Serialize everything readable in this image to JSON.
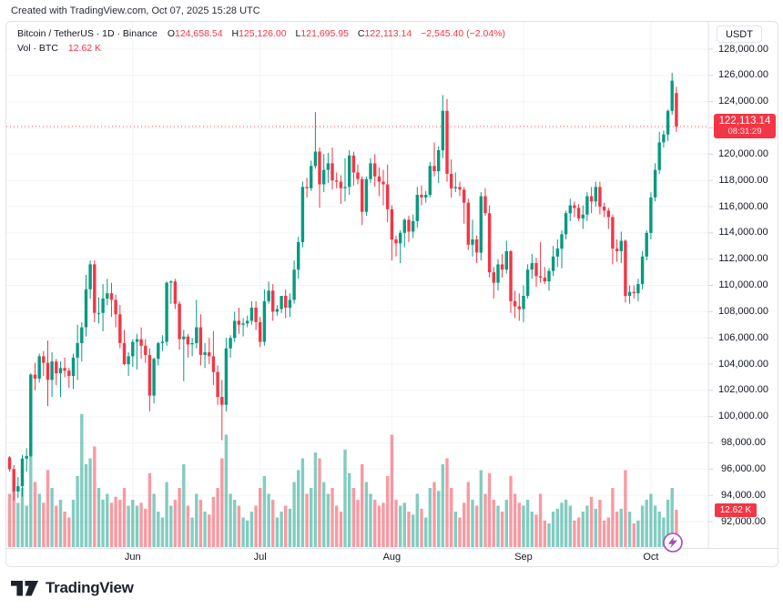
{
  "attribution": "Created with TradingView.com, Oct 07, 2025 15:28 UTC",
  "colors": {
    "up": "#089981",
    "down": "#F23645",
    "vol_up": "rgba(8,153,129,0.5)",
    "vol_down": "rgba(242,54,69,0.5)",
    "grid": "#F0F3FA",
    "axis_border": "#E0E3EB",
    "tick": "#D1D4DC",
    "badge": "#F23645",
    "accent_purple": "#AB47BC",
    "text": "#131722"
  },
  "legend": {
    "symbol": "Bitcoin / TetherUS · 1D · Binance",
    "o_label": "O",
    "o_value": "124,658.54",
    "h_label": "H",
    "h_value": "125,126.00",
    "l_label": "L",
    "l_value": "121,695.95",
    "c_label": "C",
    "c_value": "122,113.14",
    "change": "−2,545.40 (−2.04%)",
    "vol_label": "Vol · BTC",
    "vol_value": "12.62 K"
  },
  "y_axis": {
    "currency": "USDT",
    "ticks": [
      {
        "value": 128000,
        "label": "128,000.00"
      },
      {
        "value": 126000,
        "label": "126,000.00"
      },
      {
        "value": 124000,
        "label": "124,000.00"
      },
      {
        "value": 122000,
        "label": "",
        "hidden_by_badge": true
      },
      {
        "value": 120000,
        "label": "120,000.00"
      },
      {
        "value": 118000,
        "label": "118,000.00"
      },
      {
        "value": 116000,
        "label": "116,000.00"
      },
      {
        "value": 114000,
        "label": "114,000.00"
      },
      {
        "value": 112000,
        "label": "112,000.00"
      },
      {
        "value": 110000,
        "label": "110,000.00"
      },
      {
        "value": 108000,
        "label": "108,000.00"
      },
      {
        "value": 106000,
        "label": "106,000.00"
      },
      {
        "value": 104000,
        "label": "104,000.00"
      },
      {
        "value": 102000,
        "label": "102,000.00"
      },
      {
        "value": 100000,
        "label": "100,000.00"
      },
      {
        "value": 98000,
        "label": "98,000.00"
      },
      {
        "value": 96000,
        "label": "96,000.00"
      },
      {
        "value": 94000,
        "label": "94,000.00"
      },
      {
        "value": 92000,
        "label": "92,000.00"
      }
    ],
    "price_badge": {
      "price": "122,113.14",
      "countdown": "08:31:29"
    },
    "volume_badge": "12.62 K"
  },
  "x_axis": {
    "months": [
      {
        "label": "Jun",
        "index": 29
      },
      {
        "label": "Jul",
        "index": 59
      },
      {
        "label": "Aug",
        "index": 90
      },
      {
        "label": "Sep",
        "index": 121
      },
      {
        "label": "Oct",
        "index": 151
      }
    ]
  },
  "footer": {
    "logo_text": "TradingView"
  },
  "chart_data": {
    "type": "candlestick",
    "symbol": "Bitcoin / TetherUS",
    "interval": "1D",
    "exchange": "Binance",
    "title": "Bitcoin / TetherUS · 1D · Binance",
    "start_date": "2025-05-03",
    "end_date": "2025-10-07",
    "price_unit": "thousand USDT",
    "volume_unit": "thousand BTC",
    "ylim_usdt": [
      92000,
      128000
    ],
    "y_tick_step": 2000,
    "x_labels": [
      "Jun",
      "Jul",
      "Aug",
      "Sep",
      "Oct"
    ],
    "current_bar": {
      "open": 124658.54,
      "high": 125126.0,
      "low": 121695.95,
      "close": 122113.14,
      "change": -2545.4,
      "change_pct": -2.04,
      "volume_btc_k": 12.62
    },
    "candles_ohlcv": [
      [
        96.9,
        97.0,
        95.8,
        96.0,
        18
      ],
      [
        96.0,
        96.3,
        93.6,
        94.3,
        22
      ],
      [
        94.3,
        95.4,
        93.8,
        94.7,
        15
      ],
      [
        94.7,
        97.1,
        93.9,
        96.8,
        20
      ],
      [
        96.8,
        97.6,
        95.8,
        97.0,
        14
      ],
      [
        97.0,
        103.3,
        96.9,
        103.2,
        35
      ],
      [
        103.2,
        104.1,
        102.0,
        102.9,
        22
      ],
      [
        102.9,
        104.8,
        102.6,
        104.6,
        18
      ],
      [
        104.6,
        105.0,
        103.1,
        104.1,
        15
      ],
      [
        104.1,
        105.8,
        100.8,
        102.8,
        26
      ],
      [
        102.8,
        104.9,
        101.5,
        104.2,
        20
      ],
      [
        104.2,
        104.4,
        102.4,
        103.3,
        14
      ],
      [
        103.3,
        104.2,
        101.5,
        103.7,
        16
      ],
      [
        103.7,
        104.5,
        103.0,
        103.5,
        12
      ],
      [
        103.5,
        103.7,
        102.2,
        103.1,
        10
      ],
      [
        103.1,
        104.8,
        102.1,
        104.5,
        16
      ],
      [
        104.5,
        107.0,
        102.8,
        105.6,
        24
      ],
      [
        105.6,
        107.2,
        104.2,
        106.8,
        45
      ],
      [
        106.8,
        110.8,
        106.1,
        109.7,
        28
      ],
      [
        109.7,
        111.9,
        109.0,
        111.6,
        30
      ],
      [
        111.6,
        111.9,
        107.2,
        107.9,
        34
      ],
      [
        107.9,
        109.1,
        107.1,
        107.9,
        20
      ],
      [
        107.9,
        110.1,
        106.5,
        109.0,
        16
      ],
      [
        109.0,
        110.5,
        108.5,
        109.4,
        18
      ],
      [
        109.4,
        110.2,
        107.6,
        108.9,
        15
      ],
      [
        108.9,
        109.3,
        106.8,
        107.8,
        17
      ],
      [
        107.8,
        108.5,
        105.2,
        105.6,
        16
      ],
      [
        105.6,
        106.6,
        103.9,
        104.0,
        20
      ],
      [
        104.0,
        104.9,
        103.1,
        104.6,
        14
      ],
      [
        104.6,
        105.9,
        103.8,
        105.7,
        16
      ],
      [
        105.7,
        106.3,
        103.6,
        105.9,
        14
      ],
      [
        105.9,
        106.8,
        104.4,
        105.4,
        15
      ],
      [
        105.4,
        105.9,
        104.1,
        104.7,
        13
      ],
      [
        104.7,
        105.2,
        100.4,
        101.6,
        25
      ],
      [
        101.6,
        104.5,
        101.0,
        104.4,
        18
      ],
      [
        104.4,
        105.7,
        103.9,
        105.6,
        12
      ],
      [
        105.6,
        106.2,
        105.0,
        105.7,
        10
      ],
      [
        105.7,
        110.3,
        105.4,
        110.2,
        22
      ],
      [
        110.2,
        110.4,
        108.6,
        110.3,
        14
      ],
      [
        110.3,
        110.5,
        108.2,
        108.6,
        16
      ],
      [
        108.6,
        108.8,
        105.1,
        105.9,
        20
      ],
      [
        105.9,
        106.6,
        102.7,
        106.1,
        28
      ],
      [
        106.1,
        106.3,
        104.5,
        105.5,
        14
      ],
      [
        105.5,
        106.0,
        104.6,
        105.6,
        10
      ],
      [
        105.6,
        108.9,
        105.2,
        106.8,
        18
      ],
      [
        106.8,
        107.8,
        103.9,
        104.7,
        16
      ],
      [
        104.7,
        105.6,
        103.7,
        104.9,
        12
      ],
      [
        104.9,
        106.0,
        104.0,
        104.6,
        11
      ],
      [
        104.6,
        106.5,
        102.4,
        103.4,
        17
      ],
      [
        103.4,
        103.9,
        100.9,
        101.5,
        20
      ],
      [
        101.5,
        102.8,
        98.2,
        100.9,
        30
      ],
      [
        100.9,
        106.0,
        100.4,
        105.2,
        38
      ],
      [
        105.2,
        106.2,
        104.5,
        106.0,
        18
      ],
      [
        106.0,
        108.0,
        105.7,
        107.3,
        16
      ],
      [
        107.3,
        108.3,
        106.3,
        107.0,
        14
      ],
      [
        107.0,
        107.5,
        106.1,
        107.1,
        10
      ],
      [
        107.1,
        107.7,
        106.8,
        107.3,
        9
      ],
      [
        107.3,
        108.8,
        107.0,
        108.3,
        12
      ],
      [
        108.3,
        108.8,
        106.6,
        107.2,
        14
      ],
      [
        107.2,
        107.6,
        105.3,
        105.7,
        20
      ],
      [
        105.7,
        109.7,
        105.4,
        108.8,
        24
      ],
      [
        108.8,
        110.3,
        108.6,
        109.6,
        18
      ],
      [
        109.6,
        110.1,
        107.3,
        108.0,
        16
      ],
      [
        108.0,
        108.5,
        107.7,
        108.2,
        10
      ],
      [
        108.2,
        109.2,
        107.9,
        109.2,
        12
      ],
      [
        109.2,
        109.7,
        107.5,
        108.3,
        14
      ],
      [
        108.3,
        109.4,
        107.6,
        108.9,
        13
      ],
      [
        108.9,
        111.9,
        108.6,
        111.2,
        22
      ],
      [
        111.2,
        113.7,
        110.5,
        113.3,
        26
      ],
      [
        113.3,
        117.9,
        112.9,
        117.5,
        30
      ],
      [
        117.5,
        118.2,
        116.7,
        117.4,
        18
      ],
      [
        117.4,
        119.5,
        117.2,
        119.1,
        20
      ],
      [
        119.1,
        123.2,
        118.9,
        120.2,
        32
      ],
      [
        120.2,
        120.5,
        115.9,
        117.7,
        30
      ],
      [
        117.7,
        120.0,
        117.1,
        118.8,
        22
      ],
      [
        118.8,
        120.1,
        117.8,
        119.3,
        18
      ],
      [
        119.3,
        120.5,
        117.3,
        118.0,
        20
      ],
      [
        118.0,
        118.6,
        117.4,
        117.9,
        14
      ],
      [
        117.9,
        118.4,
        116.2,
        117.4,
        12
      ],
      [
        117.4,
        119.7,
        116.4,
        117.5,
        33
      ],
      [
        117.5,
        120.3,
        116.9,
        119.9,
        25
      ],
      [
        119.9,
        120.2,
        117.6,
        118.6,
        20
      ],
      [
        118.6,
        119.2,
        117.7,
        118.1,
        16
      ],
      [
        118.1,
        118.3,
        114.6,
        115.6,
        28
      ],
      [
        115.6,
        118.3,
        115.3,
        118.1,
        22
      ],
      [
        118.1,
        119.7,
        117.8,
        119.3,
        18
      ],
      [
        119.3,
        120.0,
        117.5,
        118.3,
        16
      ],
      [
        118.3,
        119.0,
        116.8,
        117.9,
        14
      ],
      [
        117.9,
        118.8,
        116.1,
        117.7,
        15
      ],
      [
        117.7,
        119.2,
        114.8,
        115.8,
        24
      ],
      [
        115.8,
        116.1,
        111.9,
        113.5,
        38
      ],
      [
        113.5,
        113.8,
        112.2,
        113.2,
        16
      ],
      [
        113.2,
        114.2,
        111.7,
        114.0,
        14
      ],
      [
        114.0,
        115.1,
        112.9,
        115.0,
        15
      ],
      [
        115.0,
        115.3,
        113.3,
        114.1,
        12
      ],
      [
        114.1,
        115.4,
        113.6,
        114.9,
        11
      ],
      [
        114.9,
        117.5,
        114.4,
        116.9,
        18
      ],
      [
        116.9,
        117.6,
        116.1,
        116.7,
        13
      ],
      [
        116.7,
        117.2,
        116.3,
        116.9,
        10
      ],
      [
        116.9,
        119.4,
        116.7,
        119.1,
        20
      ],
      [
        119.1,
        120.9,
        118.3,
        118.7,
        22
      ],
      [
        118.7,
        120.6,
        117.8,
        120.3,
        19
      ],
      [
        120.3,
        124.5,
        119.7,
        123.3,
        28
      ],
      [
        123.3,
        124.2,
        117.9,
        118.5,
        30
      ],
      [
        118.5,
        119.6,
        116.7,
        117.4,
        20
      ],
      [
        117.4,
        118.6,
        117.1,
        117.5,
        12
      ],
      [
        117.5,
        117.9,
        116.8,
        117.3,
        10
      ],
      [
        117.3,
        117.5,
        114.7,
        116.3,
        15
      ],
      [
        116.3,
        116.6,
        112.7,
        113.1,
        22
      ],
      [
        113.1,
        115.0,
        112.2,
        113.5,
        16
      ],
      [
        113.5,
        113.8,
        111.7,
        112.5,
        14
      ],
      [
        112.5,
        117.1,
        111.9,
        116.8,
        26
      ],
      [
        116.8,
        117.4,
        115.3,
        115.5,
        18
      ],
      [
        115.5,
        116.1,
        110.6,
        111.0,
        25
      ],
      [
        111.0,
        111.4,
        109.0,
        110.2,
        16
      ],
      [
        110.2,
        112.0,
        109.6,
        111.6,
        14
      ],
      [
        111.6,
        112.4,
        110.6,
        111.2,
        12
      ],
      [
        111.2,
        113.4,
        110.9,
        112.6,
        16
      ],
      [
        112.6,
        112.7,
        107.9,
        108.8,
        24
      ],
      [
        108.8,
        109.6,
        107.5,
        108.4,
        18
      ],
      [
        108.4,
        109.4,
        107.3,
        108.2,
        15
      ],
      [
        108.2,
        110.0,
        107.2,
        109.2,
        14
      ],
      [
        109.2,
        111.6,
        109.0,
        111.2,
        16
      ],
      [
        111.2,
        112.4,
        110.5,
        111.7,
        12
      ],
      [
        111.7,
        112.1,
        109.9,
        110.7,
        11
      ],
      [
        110.7,
        113.3,
        110.2,
        110.6,
        18
      ],
      [
        110.6,
        111.4,
        110.1,
        110.3,
        9
      ],
      [
        110.3,
        111.3,
        109.6,
        111.1,
        8
      ],
      [
        111.1,
        113.0,
        110.7,
        112.2,
        12
      ],
      [
        112.2,
        113.5,
        111.4,
        112.8,
        13
      ],
      [
        112.8,
        114.2,
        111.3,
        113.9,
        15
      ],
      [
        113.9,
        115.7,
        113.5,
        115.5,
        16
      ],
      [
        115.5,
        116.6,
        114.9,
        116.1,
        14
      ],
      [
        116.1,
        116.4,
        115.2,
        115.9,
        9
      ],
      [
        115.9,
        116.2,
        114.9,
        115.1,
        10
      ],
      [
        115.1,
        116.1,
        114.3,
        115.4,
        12
      ],
      [
        115.4,
        117.1,
        114.9,
        116.8,
        14
      ],
      [
        116.8,
        117.5,
        115.5,
        116.4,
        17
      ],
      [
        116.4,
        117.9,
        116.0,
        117.5,
        13
      ],
      [
        117.5,
        117.9,
        115.4,
        116.0,
        16
      ],
      [
        116.0,
        116.3,
        115.2,
        115.7,
        9
      ],
      [
        115.7,
        115.9,
        114.3,
        115.2,
        10
      ],
      [
        115.2,
        115.4,
        111.6,
        112.8,
        20
      ],
      [
        112.8,
        113.5,
        111.8,
        112.6,
        12
      ],
      [
        112.6,
        114.1,
        111.7,
        113.4,
        13
      ],
      [
        113.4,
        113.5,
        108.7,
        109.2,
        26
      ],
      [
        109.2,
        110.0,
        108.6,
        109.5,
        12
      ],
      [
        109.5,
        110.0,
        109.0,
        109.4,
        8
      ],
      [
        109.4,
        110.5,
        108.8,
        110.1,
        9
      ],
      [
        110.1,
        112.6,
        109.7,
        112.2,
        14
      ],
      [
        112.2,
        114.2,
        111.9,
        114.0,
        16
      ],
      [
        114.0,
        117.1,
        113.5,
        116.7,
        18
      ],
      [
        116.7,
        119.3,
        116.4,
        118.8,
        14
      ],
      [
        118.8,
        121.7,
        118.5,
        120.9,
        12
      ],
      [
        120.9,
        121.8,
        120.5,
        121.5,
        10
      ],
      [
        121.5,
        123.4,
        121.0,
        123.3,
        16
      ],
      [
        123.3,
        126.2,
        123.0,
        125.6,
        20
      ],
      [
        124.66,
        125.13,
        121.7,
        122.11,
        12.62
      ]
    ]
  }
}
